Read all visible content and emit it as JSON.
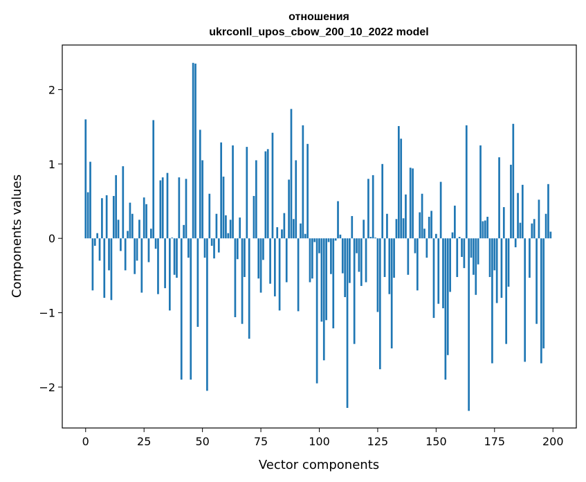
{
  "chart_data": {
    "type": "bar",
    "title_line1": "отношения",
    "title_line2": "ukrconll_upos_cbow_200_10_2022 model",
    "xlabel": "Vector components",
    "ylabel": "Components values",
    "xlim": [
      -10,
      210
    ],
    "ylim": [
      -2.55,
      2.6
    ],
    "xticks": [
      0,
      25,
      50,
      75,
      100,
      125,
      150,
      175,
      200
    ],
    "xtick_labels": [
      "0",
      "25",
      "50",
      "75",
      "100",
      "125",
      "150",
      "175",
      "200"
    ],
    "yticks": [
      -2,
      -1,
      0,
      1,
      2
    ],
    "ytick_labels": [
      "−2",
      "−1",
      "0",
      "1",
      "2"
    ],
    "bar_color": "#1f77b4",
    "x": [
      0,
      1,
      2,
      3,
      4,
      5,
      6,
      7,
      8,
      9,
      10,
      11,
      12,
      13,
      14,
      15,
      16,
      17,
      18,
      19,
      20,
      21,
      22,
      23,
      24,
      25,
      26,
      27,
      28,
      29,
      30,
      31,
      32,
      33,
      34,
      35,
      36,
      37,
      38,
      39,
      40,
      41,
      42,
      43,
      44,
      45,
      46,
      47,
      48,
      49,
      50,
      51,
      52,
      53,
      54,
      55,
      56,
      57,
      58,
      59,
      60,
      61,
      62,
      63,
      64,
      65,
      66,
      67,
      68,
      69,
      70,
      71,
      72,
      73,
      74,
      75,
      76,
      77,
      78,
      79,
      80,
      81,
      82,
      83,
      84,
      85,
      86,
      87,
      88,
      89,
      90,
      91,
      92,
      93,
      94,
      95,
      96,
      97,
      98,
      99,
      100,
      101,
      102,
      103,
      104,
      105,
      106,
      107,
      108,
      109,
      110,
      111,
      112,
      113,
      114,
      115,
      116,
      117,
      118,
      119,
      120,
      121,
      122,
      123,
      124,
      125,
      126,
      127,
      128,
      129,
      130,
      131,
      132,
      133,
      134,
      135,
      136,
      137,
      138,
      139,
      140,
      141,
      142,
      143,
      144,
      145,
      146,
      147,
      148,
      149,
      150,
      151,
      152,
      153,
      154,
      155,
      156,
      157,
      158,
      159,
      160,
      161,
      162,
      163,
      164,
      165,
      166,
      167,
      168,
      169,
      170,
      171,
      172,
      173,
      174,
      175,
      176,
      177,
      178,
      179,
      180,
      181,
      182,
      183,
      184,
      185,
      186,
      187,
      188,
      189,
      190,
      191,
      192,
      193,
      194,
      195,
      196,
      197,
      198,
      199
    ],
    "values": [
      1.6,
      0.62,
      1.03,
      -0.7,
      -0.1,
      0.07,
      -0.3,
      0.54,
      -0.8,
      0.58,
      -0.43,
      -0.83,
      0.57,
      0.85,
      0.25,
      -0.17,
      0.97,
      -0.43,
      0.1,
      0.48,
      0.33,
      -0.48,
      -0.3,
      0.25,
      -0.73,
      0.55,
      0.46,
      -0.32,
      0.13,
      1.59,
      -0.14,
      -0.75,
      0.78,
      0.82,
      -0.67,
      0.88,
      -0.97,
      0.01,
      -0.49,
      -0.53,
      0.82,
      -1.9,
      0.18,
      0.8,
      -0.26,
      -1.9,
      2.36,
      2.35,
      -1.19,
      1.46,
      1.05,
      -0.26,
      -2.05,
      0.6,
      -0.1,
      -0.27,
      0.33,
      -0.19,
      1.29,
      0.83,
      0.31,
      0.07,
      0.25,
      1.25,
      -1.06,
      -0.28,
      0.28,
      -1.15,
      -0.52,
      1.23,
      -1.35,
      0.0,
      0.57,
      1.05,
      -0.54,
      -0.73,
      -0.29,
      1.17,
      1.2,
      -0.61,
      1.42,
      -0.78,
      0.15,
      -0.97,
      0.12,
      0.34,
      -0.59,
      0.79,
      1.74,
      0.26,
      1.05,
      -0.98,
      0.2,
      1.52,
      0.06,
      1.27,
      -0.59,
      -0.54,
      -0.05,
      -1.95,
      -0.2,
      -1.12,
      -1.64,
      -1.1,
      -0.05,
      -0.48,
      -1.21,
      -0.03,
      0.5,
      0.05,
      -0.47,
      -0.79,
      -2.28,
      -0.6,
      0.3,
      -1.42,
      -0.2,
      -0.45,
      -0.64,
      0.25,
      -0.59,
      0.8,
      0.02,
      0.85,
      0.01,
      -0.99,
      -1.76,
      1.0,
      -0.52,
      0.33,
      -0.75,
      -1.48,
      -0.53,
      0.26,
      1.51,
      1.34,
      0.27,
      0.59,
      -0.49,
      0.95,
      0.94,
      -0.2,
      -0.7,
      0.35,
      0.6,
      0.13,
      -0.26,
      0.29,
      0.37,
      -1.07,
      0.06,
      -0.88,
      0.76,
      -0.94,
      -1.9,
      -1.57,
      -0.72,
      0.08,
      0.44,
      -0.52,
      0.02,
      -0.25,
      -0.4,
      1.52,
      -2.32,
      -0.26,
      -0.49,
      -0.76,
      -0.35,
      1.25,
      0.23,
      0.24,
      0.29,
      -0.52,
      -1.68,
      -0.43,
      -0.87,
      1.09,
      -0.8,
      0.42,
      -1.42,
      -0.65,
      0.99,
      1.54,
      -0.12,
      0.61,
      0.21,
      0.72,
      -1.66,
      0.0,
      -0.53,
      0.2,
      0.26,
      -1.15,
      0.52,
      -1.68,
      -1.48,
      0.33,
      0.73,
      0.09
    ]
  }
}
